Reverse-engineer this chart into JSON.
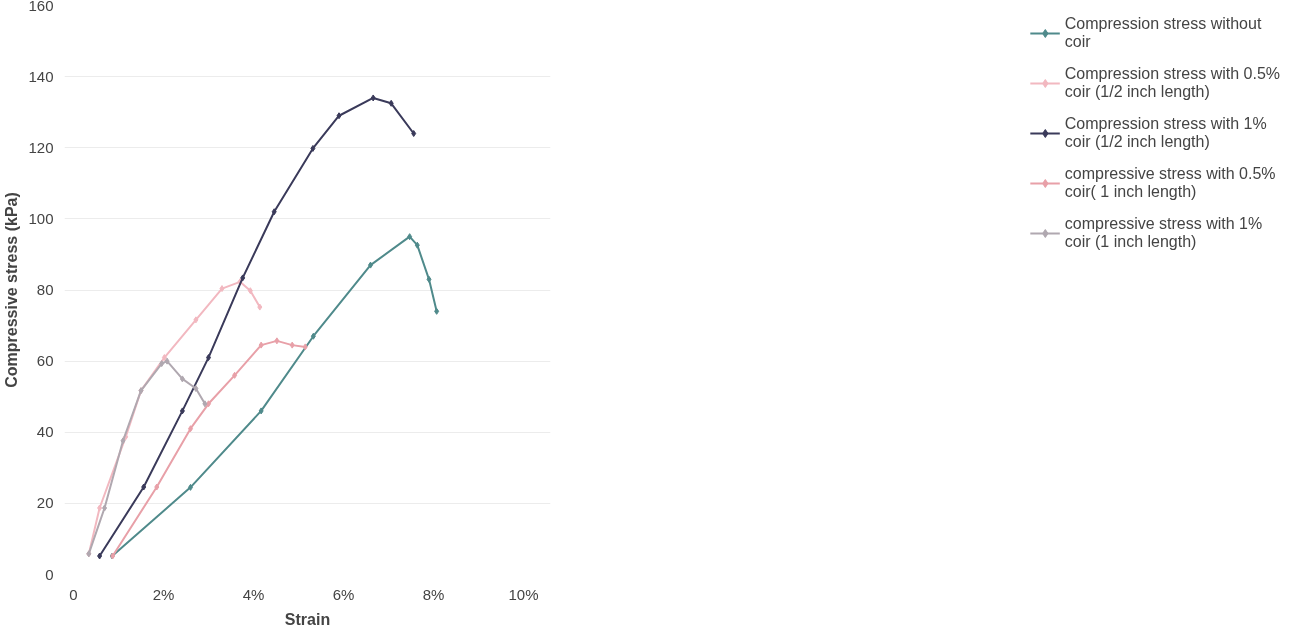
{
  "chart_data": {
    "type": "line",
    "xlabel": "Strain",
    "ylabel": "Compressive stress (kPa)",
    "xlim": [
      -0.2,
      10.6
    ],
    "ylim": [
      0,
      160
    ],
    "xticks": [
      {
        "value": 0,
        "label": "0"
      },
      {
        "value": 2,
        "label": "2%"
      },
      {
        "value": 4,
        "label": "4%"
      },
      {
        "value": 6,
        "label": "6%"
      },
      {
        "value": 8,
        "label": "8%"
      },
      {
        "value": 10,
        "label": "10%"
      }
    ],
    "yticks": [
      0,
      20,
      40,
      60,
      80,
      100,
      120,
      140,
      160
    ],
    "grid": "y",
    "legend": "right",
    "marker": "diamond",
    "line_style": "solid",
    "series": [
      {
        "name": "Compression stress without coir",
        "color": "#4f8a8b",
        "x": [
          0.86,
          2.6,
          4.17,
          5.33,
          6.6,
          7.47,
          7.64,
          7.9,
          8.07
        ],
        "values": [
          5.2,
          24.5,
          46,
          67,
          87,
          95,
          92.6,
          83,
          74
        ]
      },
      {
        "name": "Compression stress with 0.5% coir (1/2 inch length)",
        "color": "#f2b8c0",
        "x": [
          0.34,
          0.58,
          1.16,
          1.5,
          2.02,
          2.72,
          3.3,
          3.7,
          3.93,
          4.14
        ],
        "values": [
          5.8,
          18.7,
          38.7,
          51.7,
          61,
          71.6,
          80.4,
          82.3,
          79.8,
          75.2
        ]
      },
      {
        "name": "Compression stress with 1% coir (1/2 inch length)",
        "color": "#3a3a5a",
        "x": [
          0.58,
          1.56,
          2.42,
          3.0,
          3.76,
          4.46,
          5.32,
          5.9,
          6.66,
          7.06,
          7.56
        ],
        "values": [
          5.2,
          24.6,
          46,
          61,
          83.4,
          102,
          119.8,
          129,
          134,
          132.5,
          124
        ]
      },
      {
        "name": "compressive stress with 0.5% coir( 1 inch length)",
        "color": "#e8a0a8",
        "x": [
          0.87,
          1.85,
          2.6,
          3.0,
          3.58,
          4.17,
          4.52,
          4.86,
          5.15
        ],
        "values": [
          5.2,
          24.6,
          41,
          48,
          56,
          64.5,
          65.7,
          64.5,
          64
        ]
      },
      {
        "name": "compressive stress with 1% coir (1 inch length)",
        "color": "#b0a8b0",
        "x": [
          0.34,
          0.69,
          1.1,
          1.5,
          1.96,
          2.08,
          2.42,
          2.72,
          2.92
        ],
        "values": [
          5.8,
          18.7,
          37.6,
          51.7,
          59.3,
          60,
          55,
          52.3,
          48
        ]
      }
    ]
  }
}
